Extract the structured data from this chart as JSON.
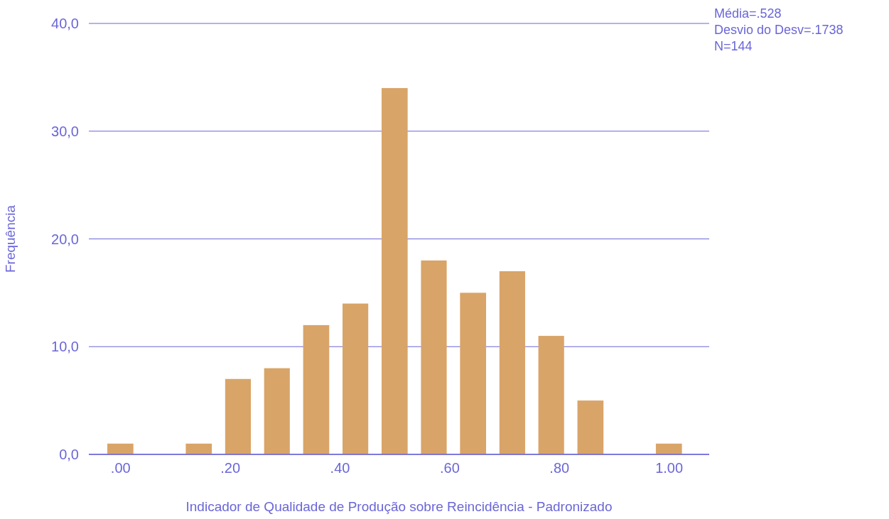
{
  "chart_data": {
    "type": "histogram",
    "xlabel": "Indicador de Qualidade de Produção sobre Reincidência - Padronizado",
    "ylabel": "Frequência",
    "bins": [
      -0.036,
      0.036,
      0.107,
      0.179,
      0.25,
      0.321,
      0.393,
      0.464,
      0.536,
      0.607,
      0.679,
      0.75,
      0.821,
      0.893,
      0.964,
      1.036
    ],
    "values": [
      1,
      0,
      1,
      7,
      8,
      12,
      14,
      34,
      18,
      15,
      17,
      11,
      5,
      0,
      1
    ],
    "color": "#d9a468",
    "xlim": [
      -0.058,
      1.073
    ],
    "xticks": [
      {
        "value": 0,
        "label": ".00"
      },
      {
        "value": 0.2,
        "label": ".20"
      },
      {
        "value": 0.4,
        "label": ".40"
      },
      {
        "value": 0.6,
        "label": ".60"
      },
      {
        "value": 0.8,
        "label": ".80"
      },
      {
        "value": 1,
        "label": "1.00"
      }
    ],
    "ylim": [
      0,
      40
    ],
    "yticks": [
      {
        "value": 0,
        "label": "0,0"
      },
      {
        "value": 10,
        "label": "10,0"
      },
      {
        "value": 20,
        "label": "20,0"
      },
      {
        "value": 30,
        "label": "30,0"
      },
      {
        "value": 40,
        "label": "40,0"
      }
    ],
    "grid": "y",
    "annotations": [
      "Média=.528",
      "Desvio do Desv=.1738",
      "N=144"
    ]
  }
}
